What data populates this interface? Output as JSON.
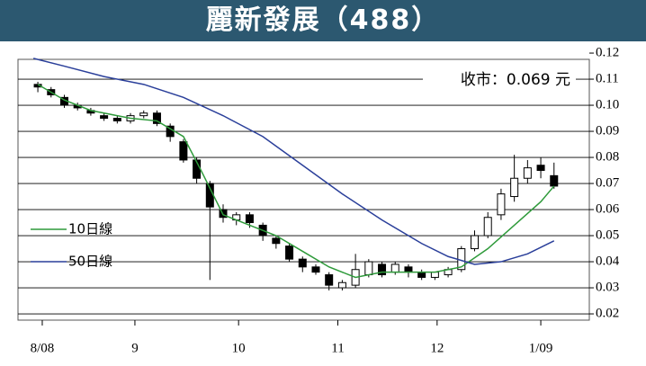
{
  "chart_data": {
    "type": "candlestick",
    "title": "麗新發展（488）",
    "annotation": "收市：0.069 元",
    "x": [
      0,
      3,
      6,
      9,
      12,
      15,
      18,
      21,
      24,
      27,
      30,
      33,
      36,
      39,
      42,
      45,
      48,
      51,
      54,
      57,
      60,
      63,
      66,
      69,
      72,
      75,
      78,
      81,
      84,
      87,
      90,
      93,
      96,
      99,
      102,
      105,
      108,
      111,
      114,
      117
    ],
    "open": [
      0.108,
      0.106,
      0.103,
      0.1,
      0.098,
      0.096,
      0.095,
      0.094,
      0.096,
      0.097,
      0.092,
      0.086,
      0.079,
      0.07,
      0.06,
      0.056,
      0.058,
      0.054,
      0.049,
      0.046,
      0.041,
      0.038,
      0.035,
      0.03,
      0.031,
      0.035,
      0.039,
      0.036,
      0.038,
      0.036,
      0.034,
      0.035,
      0.037,
      0.045,
      0.05,
      0.058,
      0.065,
      0.072,
      0.077,
      0.073
    ],
    "high": [
      0.109,
      0.107,
      0.104,
      0.101,
      0.099,
      0.097,
      0.096,
      0.097,
      0.098,
      0.098,
      0.093,
      0.087,
      0.08,
      0.071,
      0.062,
      0.059,
      0.059,
      0.055,
      0.05,
      0.047,
      0.042,
      0.039,
      0.036,
      0.033,
      0.043,
      0.041,
      0.04,
      0.04,
      0.039,
      0.037,
      0.036,
      0.038,
      0.046,
      0.052,
      0.059,
      0.068,
      0.081,
      0.079,
      0.08,
      0.078
    ],
    "low": [
      0.105,
      0.103,
      0.099,
      0.098,
      0.096,
      0.094,
      0.093,
      0.093,
      0.095,
      0.092,
      0.086,
      0.078,
      0.07,
      0.033,
      0.055,
      0.054,
      0.053,
      0.048,
      0.045,
      0.04,
      0.036,
      0.035,
      0.029,
      0.029,
      0.03,
      0.034,
      0.034,
      0.035,
      0.034,
      0.033,
      0.033,
      0.034,
      0.036,
      0.044,
      0.049,
      0.056,
      0.063,
      0.07,
      0.072,
      0.068
    ],
    "close": [
      0.107,
      0.104,
      0.1,
      0.099,
      0.097,
      0.095,
      0.094,
      0.096,
      0.097,
      0.093,
      0.088,
      0.079,
      0.072,
      0.061,
      0.057,
      0.058,
      0.055,
      0.05,
      0.047,
      0.041,
      0.038,
      0.036,
      0.031,
      0.032,
      0.037,
      0.04,
      0.035,
      0.039,
      0.036,
      0.034,
      0.036,
      0.037,
      0.045,
      0.05,
      0.057,
      0.066,
      0.072,
      0.076,
      0.075,
      0.069
    ],
    "series": [
      {
        "name": "10日線",
        "color": "#2e9a3a",
        "x": [
          0,
          6,
          12,
          21,
          27,
          33,
          37,
          42,
          48,
          54,
          60,
          66,
          72,
          78,
          84,
          90,
          96,
          102,
          108,
          114,
          117
        ],
        "values": [
          0.108,
          0.102,
          0.098,
          0.095,
          0.094,
          0.088,
          0.075,
          0.058,
          0.054,
          0.05,
          0.044,
          0.038,
          0.034,
          0.036,
          0.036,
          0.036,
          0.038,
          0.045,
          0.054,
          0.063,
          0.069
        ]
      },
      {
        "name": "50日線",
        "color": "#2a3f9a",
        "x": [
          -1,
          6,
          15,
          24,
          33,
          42,
          51,
          60,
          69,
          78,
          87,
          93,
          99,
          105,
          111,
          117
        ],
        "values": [
          0.118,
          0.115,
          0.111,
          0.108,
          0.103,
          0.096,
          0.088,
          0.077,
          0.066,
          0.056,
          0.047,
          0.042,
          0.039,
          0.04,
          0.043,
          0.048
        ]
      }
    ],
    "xlim": [
      -4.5,
      125
    ],
    "xticks": [
      {
        "value": 1,
        "label": "8/08"
      },
      {
        "value": 22,
        "label": "9"
      },
      {
        "value": 45.5,
        "label": "10"
      },
      {
        "value": 68,
        "label": "11"
      },
      {
        "value": 90.5,
        "label": "12"
      },
      {
        "value": 114,
        "label": "1/09"
      }
    ],
    "ylim": [
      0.0176,
      0.1176
    ],
    "yticks": [
      0.02,
      0.03,
      0.04,
      0.05,
      0.06,
      0.07,
      0.08,
      0.09,
      0.1,
      0.11,
      0.12
    ],
    "grid": true,
    "legend": "lower left"
  }
}
